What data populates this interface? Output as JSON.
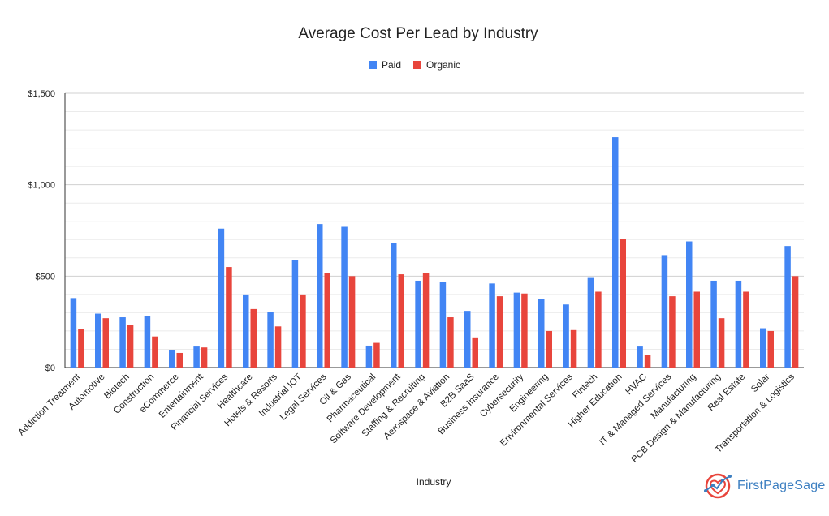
{
  "chart_data": {
    "type": "bar",
    "title": "Average Cost Per Lead by Industry",
    "xlabel": "Industry",
    "ylabel": "",
    "ylim": [
      0,
      1500
    ],
    "yticks": [
      {
        "value": 0,
        "label": "$0"
      },
      {
        "value": 500,
        "label": "$500"
      },
      {
        "value": 1000,
        "label": "$1,000"
      },
      {
        "value": 1500,
        "label": "$1,500"
      }
    ],
    "grid": true,
    "legend_position": "top-center",
    "categories": [
      "Addiction Treatment",
      "Automotive",
      "Biotech",
      "Construction",
      "eCommerce",
      "Entertainment",
      "Financial Services",
      "Healthcare",
      "Hotels & Resorts",
      "Industrial IOT",
      "Legal Services",
      "Oil & Gas",
      "Pharmaceutical",
      "Software Development",
      "Staffing & Recruiting",
      "Aerospace & Aviation",
      "B2B SaaS",
      "Business Insurance",
      "Cybersecurity",
      "Engineering",
      "Environmental Services",
      "Fintech",
      "Higher Education",
      "HVAC",
      "IT & Managed Services",
      "Manufacturing",
      "PCB Design & Manufacturing",
      "Real Estate",
      "Solar",
      "Transportation & Logistics"
    ],
    "series": [
      {
        "name": "Paid",
        "color": "#4285f4",
        "values": [
          380,
          295,
          275,
          280,
          95,
          115,
          760,
          400,
          305,
          590,
          785,
          770,
          120,
          680,
          475,
          470,
          310,
          460,
          410,
          375,
          345,
          490,
          1260,
          115,
          615,
          690,
          475,
          475,
          215,
          665
        ]
      },
      {
        "name": "Organic",
        "color": "#e8453c",
        "values": [
          210,
          270,
          235,
          170,
          80,
          110,
          550,
          320,
          225,
          400,
          515,
          500,
          135,
          510,
          515,
          275,
          165,
          390,
          405,
          200,
          205,
          415,
          705,
          70,
          390,
          415,
          270,
          415,
          200,
          500
        ]
      }
    ]
  },
  "brand": {
    "name": "FirstPageSage",
    "icon": "heart-chart-logo"
  }
}
